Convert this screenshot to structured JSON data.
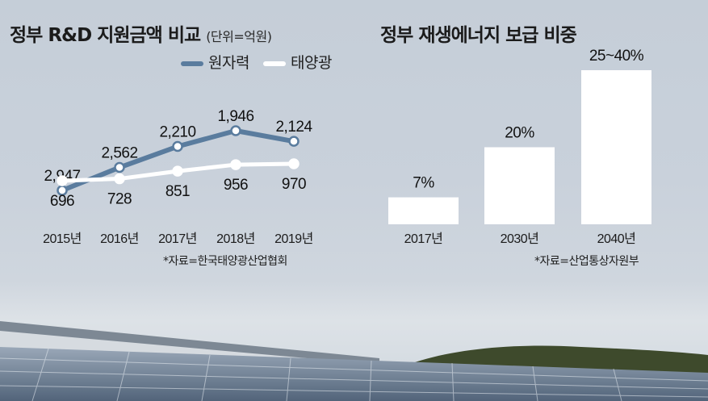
{
  "chart_data": [
    {
      "type": "line",
      "title": "정부 R&D 지원금액 비교",
      "unit_note": "(단위=억원)",
      "categories": [
        "2015년",
        "2016년",
        "2017년",
        "2018년",
        "2019년"
      ],
      "series": [
        {
          "name": "원자력",
          "values": [
            2947,
            2562,
            2210,
            1946,
            2124
          ],
          "labels": [
            "2,947",
            "2,562",
            "2,210",
            "1,946",
            "2,124"
          ],
          "color": "#5a7c9e"
        },
        {
          "name": "태양광",
          "values": [
            696,
            728,
            851,
            956,
            970
          ],
          "labels": [
            "696",
            "728",
            "851",
            "956",
            "970"
          ],
          "color": "#ffffff"
        }
      ],
      "source": "*자료=한국태양광산업협회"
    },
    {
      "type": "bar",
      "title": "정부 재생에너지 보급 비중",
      "categories": [
        "2017년",
        "2030년",
        "2040년"
      ],
      "values": [
        7,
        20,
        40
      ],
      "labels": [
        "7%",
        "20%",
        "25~40%"
      ],
      "bar_color": "#ffffff",
      "source": "*자료=산업통상자원부"
    }
  ]
}
